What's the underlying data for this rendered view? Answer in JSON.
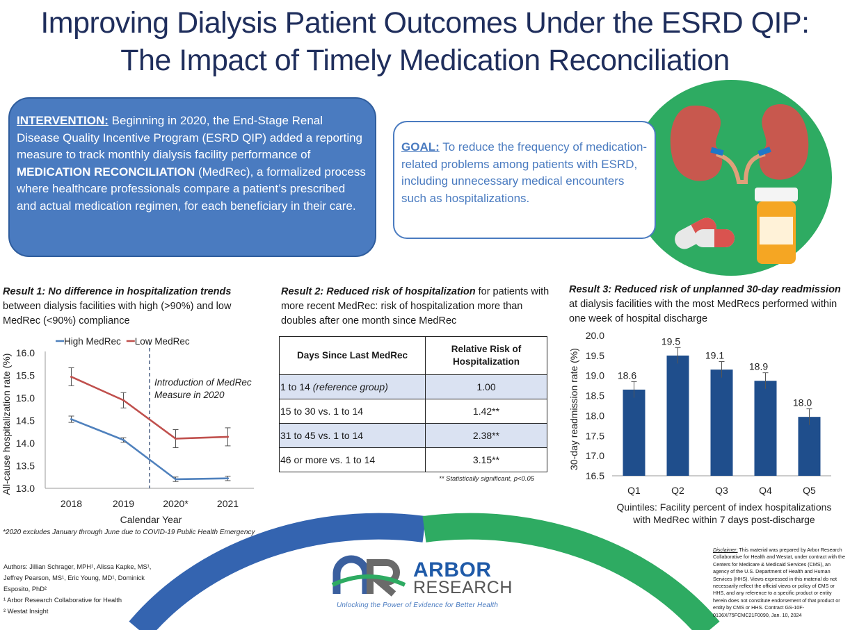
{
  "title": {
    "line1": "Improving Dialysis Patient Outcomes Under the ESRD QIP:",
    "line2": "The Impact of Timely Medication Reconciliation"
  },
  "intervention": {
    "keyword": "INTERVENTION:",
    "text1": " Beginning in 2020, the End-Stage Renal Disease Quality Incentive Program (ESRD QIP) added a reporting measure to track monthly dialysis facility performance of ",
    "bold": "MEDICATION RECONCILIATION",
    "text2": " (MedRec), a formalized process where healthcare professionals compare a patient’s prescribed and actual medication regimen, for each beneficiary in their care."
  },
  "goal": {
    "keyword": "GOAL:",
    "text": " To reduce the frequency of medication-related problems among patients with ESRD, including unnecessary medical encounters such as hospitalizations."
  },
  "result1": {
    "lead": "Result 1: No difference in hospitalization trends",
    "rest": " between dialysis facilities with high (>90%) and low MedRec (<90%) compliance",
    "footnote": "*2020 excludes January through June due to COVID-19 Public Health Emergency"
  },
  "result2": {
    "lead": "Result 2: Reduced risk of hospitalization",
    "rest": " for patients with more recent MedRec: risk of hospitalization more than doubles after one month since MedRec",
    "table_headers": [
      "Days Since Last MedRec",
      "Relative Risk of Hospitalization"
    ],
    "rows": [
      {
        "label": "1 to 14 ",
        "label_em": "(reference group)",
        "value": "1.00"
      },
      {
        "label": "15 to 30 vs. 1 to 14",
        "label_em": "",
        "value": "1.42**"
      },
      {
        "label": "31 to 45 vs. 1 to 14",
        "label_em": "",
        "value": "2.38**"
      },
      {
        "label": "46 or more vs. 1 to 14",
        "label_em": "",
        "value": "3.15**"
      }
    ],
    "footnote": "** Statistically significant, p<0.05"
  },
  "result3": {
    "lead": "Result 3: Reduced risk of unplanned 30-day readmission",
    "rest": " at dialysis facilities with the most MedRecs performed within one week of hospital discharge"
  },
  "chart_data": [
    {
      "type": "line",
      "xlabel": "Calendar Year",
      "ylabel": "All-cause hospitalization rate (%)",
      "categories": [
        "2018",
        "2019",
        "2020*",
        "2021"
      ],
      "ylim": [
        13.0,
        16.0
      ],
      "yticks": [
        "13.0",
        "13.5",
        "14.0",
        "14.5",
        "15.0",
        "15.5",
        "16.0"
      ],
      "legend_position": "top",
      "series": [
        {
          "name": "High MedRec",
          "color": "#4f81bd",
          "values": [
            14.53,
            14.07,
            13.2,
            13.22
          ],
          "err": [
            0.07,
            0.05,
            0.05,
            0.05
          ]
        },
        {
          "name": "Low MedRec",
          "color": "#c0504d",
          "values": [
            15.47,
            14.95,
            14.1,
            14.14
          ],
          "err": [
            0.2,
            0.17,
            0.2,
            0.2
          ]
        }
      ],
      "annotation": [
        "Introduction of MedRec",
        "Measure in 2020"
      ]
    },
    {
      "type": "bar",
      "ylabel": "30-day readmission rate (%)",
      "xlabel_lines": [
        "Quintiles: Facility percent of index hospitalizations",
        "with MedRec within 7 days post-discharge"
      ],
      "categories": [
        "Q1",
        "Q2",
        "Q3",
        "Q4",
        "Q5"
      ],
      "values": [
        18.65,
        19.5,
        19.15,
        18.87,
        17.97
      ],
      "data_labels": [
        "18.6",
        "19.5",
        "19.1",
        "18.9",
        "18.0"
      ],
      "err": [
        0.2,
        0.2,
        0.2,
        0.2,
        0.2
      ],
      "ylim": [
        16.5,
        20.0
      ],
      "yticks": [
        "16.5",
        "17.0",
        "17.5",
        "18.0",
        "18.5",
        "19.0",
        "19.5",
        "20.0"
      ],
      "color": "#1f4e8c"
    }
  ],
  "authors": [
    "Authors: Jillian Schrager, MPH¹, Alissa Kapke, MS¹,",
    "Jeffrey Pearson, MS¹, Eric Young, MD¹, Dominick",
    "Esposito, PhD²",
    "¹ Arbor Research Collaborative for Health",
    "² Westat Insight"
  ],
  "logo": {
    "arbor": "ARBOR",
    "research": "RESEARCH",
    "tagline": "Unlocking the Power of Evidence for Better Health"
  },
  "disclaimer": {
    "label": "Disclaimer:",
    "text": " This material was prepared by Arbor Research Collaborative for Health and Westat, under contract with the Centers for Medicare & Medicaid Services (CMS), an agency of the U.S. Department of Health and Human Services (HHS). Views expressed in this material do not necessarily reflect the official views or policy of CMS or HHS, and any reference to a specific product or entity herein does not constitute endorsement of that product or entity by CMS or HHS. Contract GS-10F-0136X/75FCMC21F0090, Jan. 10, 2024"
  }
}
